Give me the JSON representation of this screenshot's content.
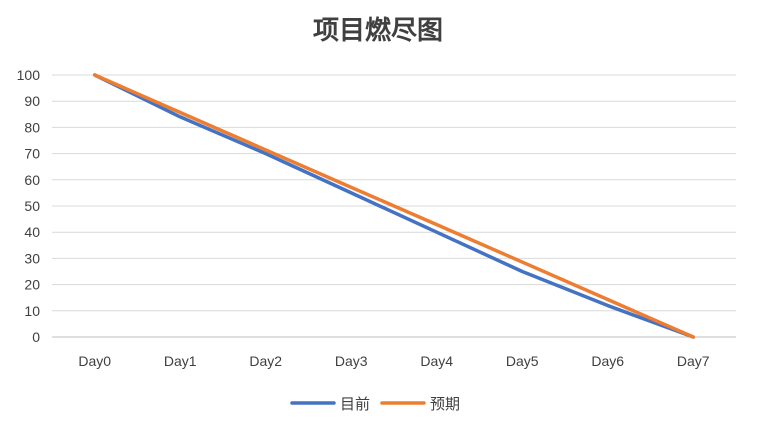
{
  "chart_data": {
    "type": "line",
    "title": "项目燃尽图",
    "xlabel": "",
    "ylabel": "",
    "categories": [
      "Day0",
      "Day1",
      "Day2",
      "Day3",
      "Day4",
      "Day5",
      "Day6",
      "Day7"
    ],
    "series": [
      {
        "name": "目前",
        "color": "#4472C4",
        "values": [
          100,
          84,
          70,
          55,
          40,
          25,
          12,
          0
        ]
      },
      {
        "name": "预期",
        "color": "#ED7D31",
        "values": [
          100,
          85.7,
          71.4,
          57.1,
          42.9,
          28.6,
          14.3,
          0
        ]
      }
    ],
    "ylim": [
      0,
      100
    ],
    "yticks": [
      0,
      10,
      20,
      30,
      40,
      50,
      60,
      70,
      80,
      90,
      100
    ],
    "grid": true,
    "legend": "bottom"
  }
}
